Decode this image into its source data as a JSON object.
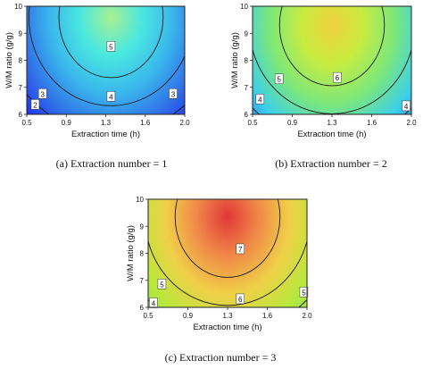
{
  "chart_data": [
    {
      "type": "heatmap",
      "subtype": "contour",
      "caption": "(a) Extraction number = 1",
      "xlabel": "Extraction time (h)",
      "ylabel": "W/M ratio (g/g)",
      "xlim": [
        0.5,
        2.0
      ],
      "ylim": [
        6,
        10
      ],
      "xticks": [
        "0.5",
        "0.9",
        "1.3",
        "1.6",
        "2.0"
      ],
      "yticks": [
        "6",
        "7",
        "8",
        "9",
        "10"
      ],
      "center": {
        "x": 1.3,
        "y": 9.6
      },
      "levels": [
        2,
        3,
        4,
        5
      ],
      "contour_labels": [
        {
          "text": "2",
          "x": 0.58,
          "y": 6.35
        },
        {
          "text": "3",
          "x": 0.65,
          "y": 6.75
        },
        {
          "text": "3",
          "x": 1.89,
          "y": 6.75
        },
        {
          "text": "4",
          "x": 1.3,
          "y": 6.65
        },
        {
          "text": "5",
          "x": 1.3,
          "y": 8.5
        }
      ],
      "colormap": [
        "#1a1af0",
        "#2f6ae8",
        "#3ab6ec",
        "#4ae8e0",
        "#a8f090"
      ]
    },
    {
      "type": "heatmap",
      "subtype": "contour",
      "caption": "(b) Extraction number = 2",
      "xlabel": "Extraction time (h)",
      "ylabel": "W/M ratio (g/g)",
      "xlim": [
        0.5,
        2.0
      ],
      "ylim": [
        6,
        10
      ],
      "xticks": [
        "0.5",
        "0.9",
        "1.3",
        "1.6",
        "2.0"
      ],
      "yticks": [
        "6",
        "7",
        "8",
        "9",
        "10"
      ],
      "center": {
        "x": 1.25,
        "y": 9.3
      },
      "levels": [
        4,
        5,
        6
      ],
      "contour_labels": [
        {
          "text": "4",
          "x": 0.57,
          "y": 6.55
        },
        {
          "text": "5",
          "x": 0.75,
          "y": 7.3
        },
        {
          "text": "6",
          "x": 1.3,
          "y": 7.35
        },
        {
          "text": "4",
          "x": 1.95,
          "y": 6.3
        }
      ],
      "colormap": [
        "#2a6ef0",
        "#3cd0e8",
        "#7ee878",
        "#c8ec40",
        "#f0d040"
      ]
    },
    {
      "type": "heatmap",
      "subtype": "contour",
      "caption": "(c) Extraction number = 3",
      "xlabel": "Extraction time (h)",
      "ylabel": "W/M ratio (g/g)",
      "xlim": [
        0.5,
        2.0
      ],
      "ylim": [
        6,
        10
      ],
      "xticks": [
        "0.5",
        "0.9",
        "1.3",
        "1.6",
        "2.0"
      ],
      "yticks": [
        "6",
        "7",
        "8",
        "9",
        "10"
      ],
      "center": {
        "x": 1.25,
        "y": 9.35
      },
      "levels": [
        4,
        5,
        6,
        7
      ],
      "contour_labels": [
        {
          "text": "4",
          "x": 0.55,
          "y": 6.15
        },
        {
          "text": "5",
          "x": 0.63,
          "y": 6.85
        },
        {
          "text": "6",
          "x": 1.37,
          "y": 6.3
        },
        {
          "text": "7",
          "x": 1.37,
          "y": 8.15
        },
        {
          "text": "5",
          "x": 1.97,
          "y": 6.55
        }
      ],
      "colormap": [
        "#80e060",
        "#b8e83c",
        "#f0d048",
        "#f08848",
        "#e03838"
      ]
    }
  ]
}
